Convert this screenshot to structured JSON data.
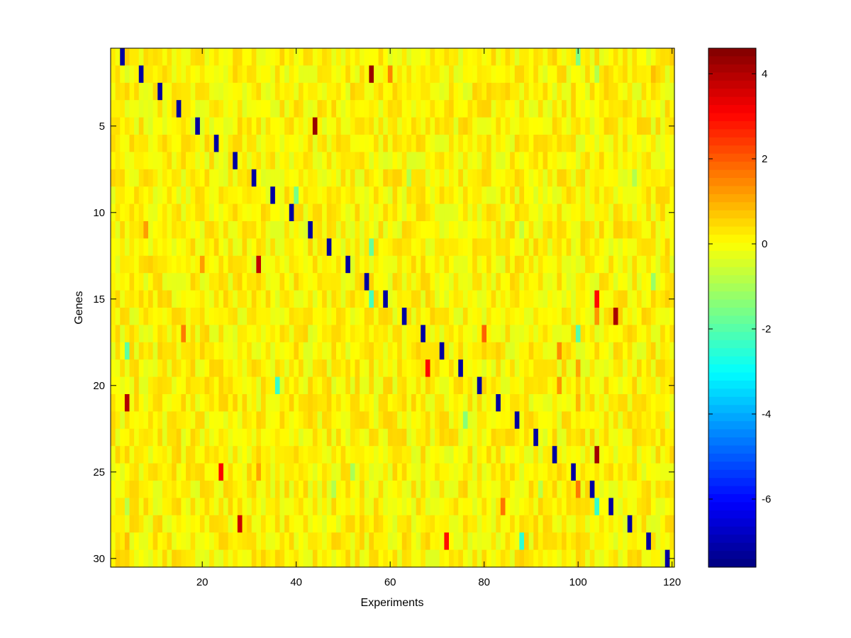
{
  "chart_data": {
    "type": "heatmap",
    "title": "",
    "xlabel": "Experiments",
    "ylabel": "Genes",
    "n_cols": 120,
    "n_rows": 30,
    "xlim": [
      0.5,
      120.5
    ],
    "ylim": [
      0.5,
      30.5
    ],
    "x_ticks": [
      20,
      40,
      60,
      80,
      100,
      120
    ],
    "y_ticks": [
      5,
      10,
      15,
      20,
      25,
      30
    ],
    "colorbar": {
      "colormap": "jet",
      "clim": [
        -7.6,
        4.6
      ],
      "ticks": [
        4,
        2,
        0,
        -2,
        -4,
        -6
      ],
      "tick_labels": [
        "4",
        "2",
        "0",
        "-2",
        "-4",
        "-6"
      ]
    },
    "diagonal_pattern": {
      "value": -7.2,
      "col_formula": "col = 4*row - 1",
      "rows": [
        1,
        30
      ]
    },
    "background_value_range": [
      -0.4,
      0.6
    ],
    "cells": [
      {
        "row": 1,
        "col": 100,
        "value": -1.5
      },
      {
        "row": 2,
        "col": 56,
        "value": 4.3
      },
      {
        "row": 2,
        "col": 60,
        "value": 1.5
      },
      {
        "row": 2,
        "col": 104,
        "value": -0.9
      },
      {
        "row": 2,
        "col": 116,
        "value": 0.8
      },
      {
        "row": 5,
        "col": 44,
        "value": 4.3
      },
      {
        "row": 8,
        "col": 64,
        "value": -0.9
      },
      {
        "row": 8,
        "col": 112,
        "value": -0.9
      },
      {
        "row": 9,
        "col": 40,
        "value": -1.6
      },
      {
        "row": 11,
        "col": 8,
        "value": 1.2
      },
      {
        "row": 11,
        "col": 88,
        "value": -0.7
      },
      {
        "row": 12,
        "col": 56,
        "value": -1.8
      },
      {
        "row": 13,
        "col": 20,
        "value": 1.2
      },
      {
        "row": 13,
        "col": 32,
        "value": 3.8
      },
      {
        "row": 14,
        "col": 116,
        "value": -1.2
      },
      {
        "row": 15,
        "col": 56,
        "value": -2.2
      },
      {
        "row": 15,
        "col": 104,
        "value": 3.0
      },
      {
        "row": 16,
        "col": 104,
        "value": 1.3
      },
      {
        "row": 16,
        "col": 108,
        "value": 4.1
      },
      {
        "row": 17,
        "col": 16,
        "value": 1.6
      },
      {
        "row": 17,
        "col": 80,
        "value": 1.9
      },
      {
        "row": 17,
        "col": 100,
        "value": -2.0
      },
      {
        "row": 18,
        "col": 4,
        "value": -1.9
      },
      {
        "row": 18,
        "col": 96,
        "value": 1.4
      },
      {
        "row": 19,
        "col": 68,
        "value": 3.0
      },
      {
        "row": 19,
        "col": 100,
        "value": 1.1
      },
      {
        "row": 20,
        "col": 36,
        "value": -2.4
      },
      {
        "row": 20,
        "col": 96,
        "value": 1.3
      },
      {
        "row": 21,
        "col": 4,
        "value": 4.0
      },
      {
        "row": 21,
        "col": 100,
        "value": 0.9
      },
      {
        "row": 22,
        "col": 76,
        "value": -1.4
      },
      {
        "row": 24,
        "col": 104,
        "value": 4.2
      },
      {
        "row": 25,
        "col": 24,
        "value": 3.1
      },
      {
        "row": 25,
        "col": 32,
        "value": 1.1
      },
      {
        "row": 25,
        "col": 52,
        "value": -1.0
      },
      {
        "row": 26,
        "col": 100,
        "value": 1.6
      },
      {
        "row": 26,
        "col": 48,
        "value": -0.9
      },
      {
        "row": 26,
        "col": 92,
        "value": -0.8
      },
      {
        "row": 27,
        "col": 84,
        "value": 1.7
      },
      {
        "row": 27,
        "col": 104,
        "value": -2.4
      },
      {
        "row": 27,
        "col": 4,
        "value": -0.8
      },
      {
        "row": 28,
        "col": 28,
        "value": 3.7
      },
      {
        "row": 29,
        "col": 72,
        "value": 2.9
      },
      {
        "row": 29,
        "col": 88,
        "value": -2.5
      },
      {
        "row": 29,
        "col": 4,
        "value": 0.8
      }
    ]
  }
}
